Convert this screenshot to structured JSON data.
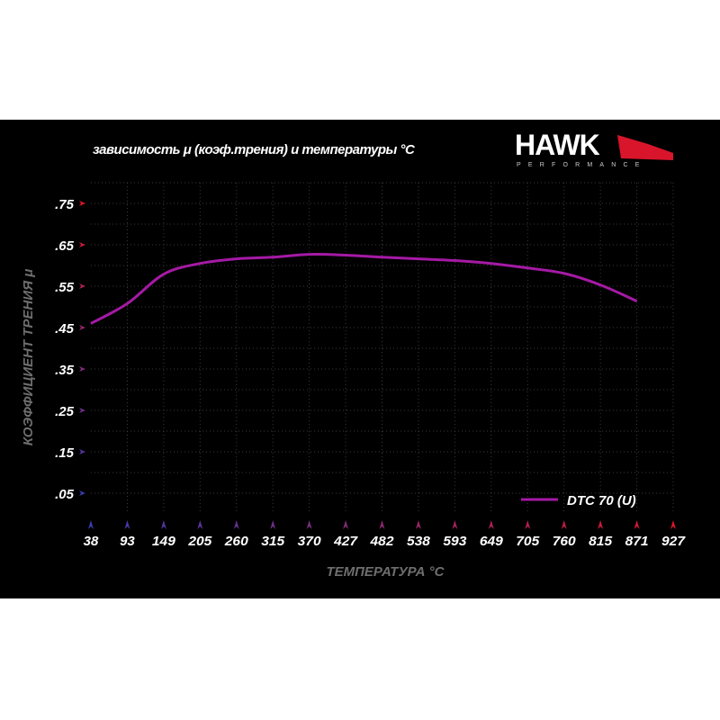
{
  "title": "зависимость μ (коэф.трения) и температуры °C",
  "logo": {
    "brand": "HAWK",
    "sub": "PERFORMANCE"
  },
  "chart_data": {
    "type": "line",
    "title": "зависимость μ (коэф.трения) и температуры °C",
    "xlabel": "ТЕМПЕРАТУРА °C",
    "ylabel": "КОЭФФИЦИЕНТ ТРЕНИЯ μ",
    "x_ticks": [
      "38",
      "93",
      "149",
      "205",
      "260",
      "315",
      "370",
      "427",
      "482",
      "538",
      "593",
      "649",
      "705",
      "760",
      "815",
      "871",
      "927"
    ],
    "y_ticks": [
      ".75",
      ".65",
      ".55",
      ".45",
      ".35",
      ".25",
      ".15",
      ".05"
    ],
    "y_tick_values": [
      0.75,
      0.65,
      0.55,
      0.45,
      0.35,
      0.25,
      0.15,
      0.05
    ],
    "ylim": [
      0,
      0.8
    ],
    "grid": true,
    "legend": "bottom-right",
    "series": [
      {
        "name": "DTC 70 (U)",
        "color": "#a51aa5",
        "x": [
          38,
          93,
          149,
          205,
          260,
          315,
          370,
          427,
          482,
          538,
          593,
          649,
          705,
          760,
          815,
          871
        ],
        "values": [
          0.46,
          0.508,
          0.579,
          0.605,
          0.616,
          0.62,
          0.627,
          0.625,
          0.62,
          0.616,
          0.612,
          0.605,
          0.594,
          0.581,
          0.553,
          0.514
        ]
      }
    ],
    "colors": {
      "axis_start": "#3b3bb0",
      "axis_end": "#e0152b",
      "grid": "#444444",
      "xlabel": "#6e6e6e",
      "ylabel": "#6e6e6e"
    }
  }
}
